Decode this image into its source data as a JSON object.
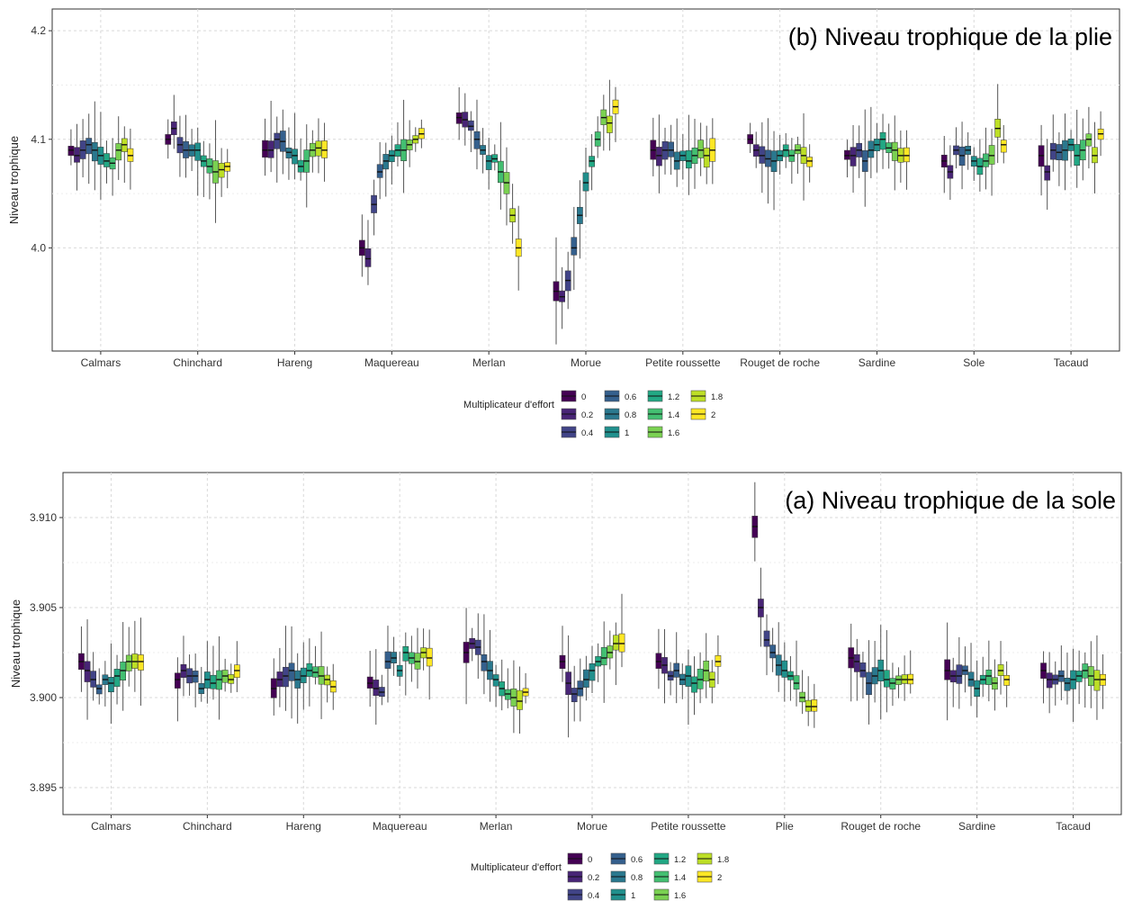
{
  "palette": [
    "#440154",
    "#482576",
    "#414487",
    "#35608d",
    "#2a788e",
    "#21908d",
    "#22a884",
    "#43bf71",
    "#7ad151",
    "#bddf26",
    "#fde725"
  ],
  "chart_data": [
    {
      "type": "boxplot",
      "title": "(b) Niveau trophique de la plie",
      "xlabel": "",
      "ylabel": "Niveau trophique",
      "ylim": [
        3.905,
        4.22
      ],
      "yticks": [
        4.0,
        4.1,
        4.2
      ],
      "ytick_labels": [
        "4.0",
        "4.1",
        "4.2"
      ],
      "grid": true,
      "legend_placement": "bottom",
      "legend": {
        "title": "Multiplicateur d'effort",
        "labels": [
          "0",
          "0.2",
          "0.4",
          "0.6",
          "0.8",
          "1",
          "1.2",
          "1.4",
          "1.6",
          "1.8",
          "2"
        ]
      },
      "categories": [
        "Calmars",
        "Chinchard",
        "Hareng",
        "Maquereau",
        "Merlan",
        "Morue",
        "Petite roussette",
        "Rouget de roche",
        "Sardine",
        "Sole",
        "Tacaud"
      ],
      "medians": [
        [
          4.09,
          4.085,
          4.09,
          4.095,
          4.09,
          4.085,
          4.08,
          4.078,
          4.09,
          4.095,
          4.085
        ],
        [
          4.1,
          4.11,
          4.095,
          4.09,
          4.09,
          4.09,
          4.08,
          4.075,
          4.07,
          4.072,
          4.075
        ],
        [
          4.09,
          4.09,
          4.1,
          4.098,
          4.088,
          4.085,
          4.075,
          4.08,
          4.09,
          4.092,
          4.09
        ],
        [
          4.0,
          3.99,
          4.04,
          4.07,
          4.08,
          4.085,
          4.09,
          4.09,
          4.095,
          4.1,
          4.105
        ],
        [
          4.12,
          4.118,
          4.112,
          4.1,
          4.09,
          4.08,
          4.082,
          4.07,
          4.06,
          4.03,
          4.0
        ],
        [
          3.96,
          3.955,
          3.97,
          4.0,
          4.03,
          4.06,
          4.08,
          4.1,
          4.12,
          4.115,
          4.13
        ],
        [
          4.09,
          4.085,
          4.09,
          4.09,
          4.08,
          4.085,
          4.08,
          4.085,
          4.09,
          4.085,
          4.09
        ],
        [
          4.1,
          4.09,
          4.085,
          4.082,
          4.08,
          4.085,
          4.09,
          4.085,
          4.09,
          4.085,
          4.08
        ],
        [
          4.085,
          4.085,
          4.09,
          4.08,
          4.09,
          4.095,
          4.1,
          4.092,
          4.09,
          4.085,
          4.085
        ],
        [
          4.08,
          4.07,
          4.09,
          4.085,
          4.09,
          4.08,
          4.075,
          4.08,
          4.085,
          4.11,
          4.095
        ],
        [
          4.085,
          4.07,
          4.09,
          4.088,
          4.09,
          4.095,
          4.085,
          4.09,
          4.1,
          4.085,
          4.105
        ]
      ]
    },
    {
      "type": "boxplot",
      "title": "(a) Niveau trophique de la sole",
      "xlabel": "",
      "ylabel": "Niveau trophique",
      "ylim": [
        3.8935,
        3.9125
      ],
      "yticks": [
        3.895,
        3.9,
        3.905,
        3.91
      ],
      "ytick_labels": [
        "3.895",
        "3.900",
        "3.905",
        "3.910"
      ],
      "grid": true,
      "legend_placement": "bottom",
      "legend": {
        "title": "Multiplicateur d'effort",
        "labels": [
          "0",
          "0.2",
          "0.4",
          "0.6",
          "0.8",
          "1",
          "1.2",
          "1.4",
          "1.6",
          "1.8",
          "2"
        ]
      },
      "categories": [
        "Calmars",
        "Chinchard",
        "Hareng",
        "Maquereau",
        "Merlan",
        "Morue",
        "Petite roussette",
        "Plie",
        "Rouget de roche",
        "Sardine",
        "Tacaud"
      ],
      "medians": [
        [
          3.902,
          3.9015,
          3.901,
          3.9005,
          3.901,
          3.9008,
          3.9012,
          3.9015,
          3.902,
          3.902,
          3.902
        ],
        [
          3.901,
          3.9015,
          3.9012,
          3.9012,
          3.9005,
          3.901,
          3.9008,
          3.901,
          3.9012,
          3.901,
          3.9015
        ],
        [
          3.9005,
          3.901,
          3.9012,
          3.9015,
          3.901,
          3.9012,
          3.9015,
          3.9014,
          3.9012,
          3.901,
          3.9006
        ],
        [
          3.9008,
          3.9005,
          3.9003,
          3.902,
          3.9022,
          3.9015,
          3.9025,
          3.9022,
          3.902,
          3.9025,
          3.9022
        ],
        [
          3.9025,
          3.903,
          3.9028,
          3.902,
          3.9015,
          3.901,
          3.9005,
          3.9002,
          3.9,
          3.8998,
          3.9003
        ],
        [
          3.902,
          3.9008,
          3.9002,
          3.9005,
          3.901,
          3.9015,
          3.902,
          3.9022,
          3.9025,
          3.903,
          3.903
        ],
        [
          3.902,
          3.9018,
          3.9012,
          3.9015,
          3.901,
          3.9012,
          3.9008,
          3.901,
          3.9015,
          3.901,
          3.902
        ],
        [
          3.9095,
          3.905,
          3.9032,
          3.9025,
          3.9018,
          3.9015,
          3.9012,
          3.9008,
          3.9,
          3.8995,
          3.8995
        ],
        [
          3.9022,
          3.902,
          3.9015,
          3.9008,
          3.9012,
          3.9015,
          3.901,
          3.9008,
          3.901,
          3.901,
          3.901
        ],
        [
          3.9015,
          3.9012,
          3.9012,
          3.9015,
          3.901,
          3.9005,
          3.901,
          3.9012,
          3.9008,
          3.9015,
          3.901
        ],
        [
          3.9015,
          3.901,
          3.901,
          3.9012,
          3.9008,
          3.901,
          3.9012,
          3.9015,
          3.9012,
          3.901,
          3.901
        ]
      ]
    }
  ]
}
